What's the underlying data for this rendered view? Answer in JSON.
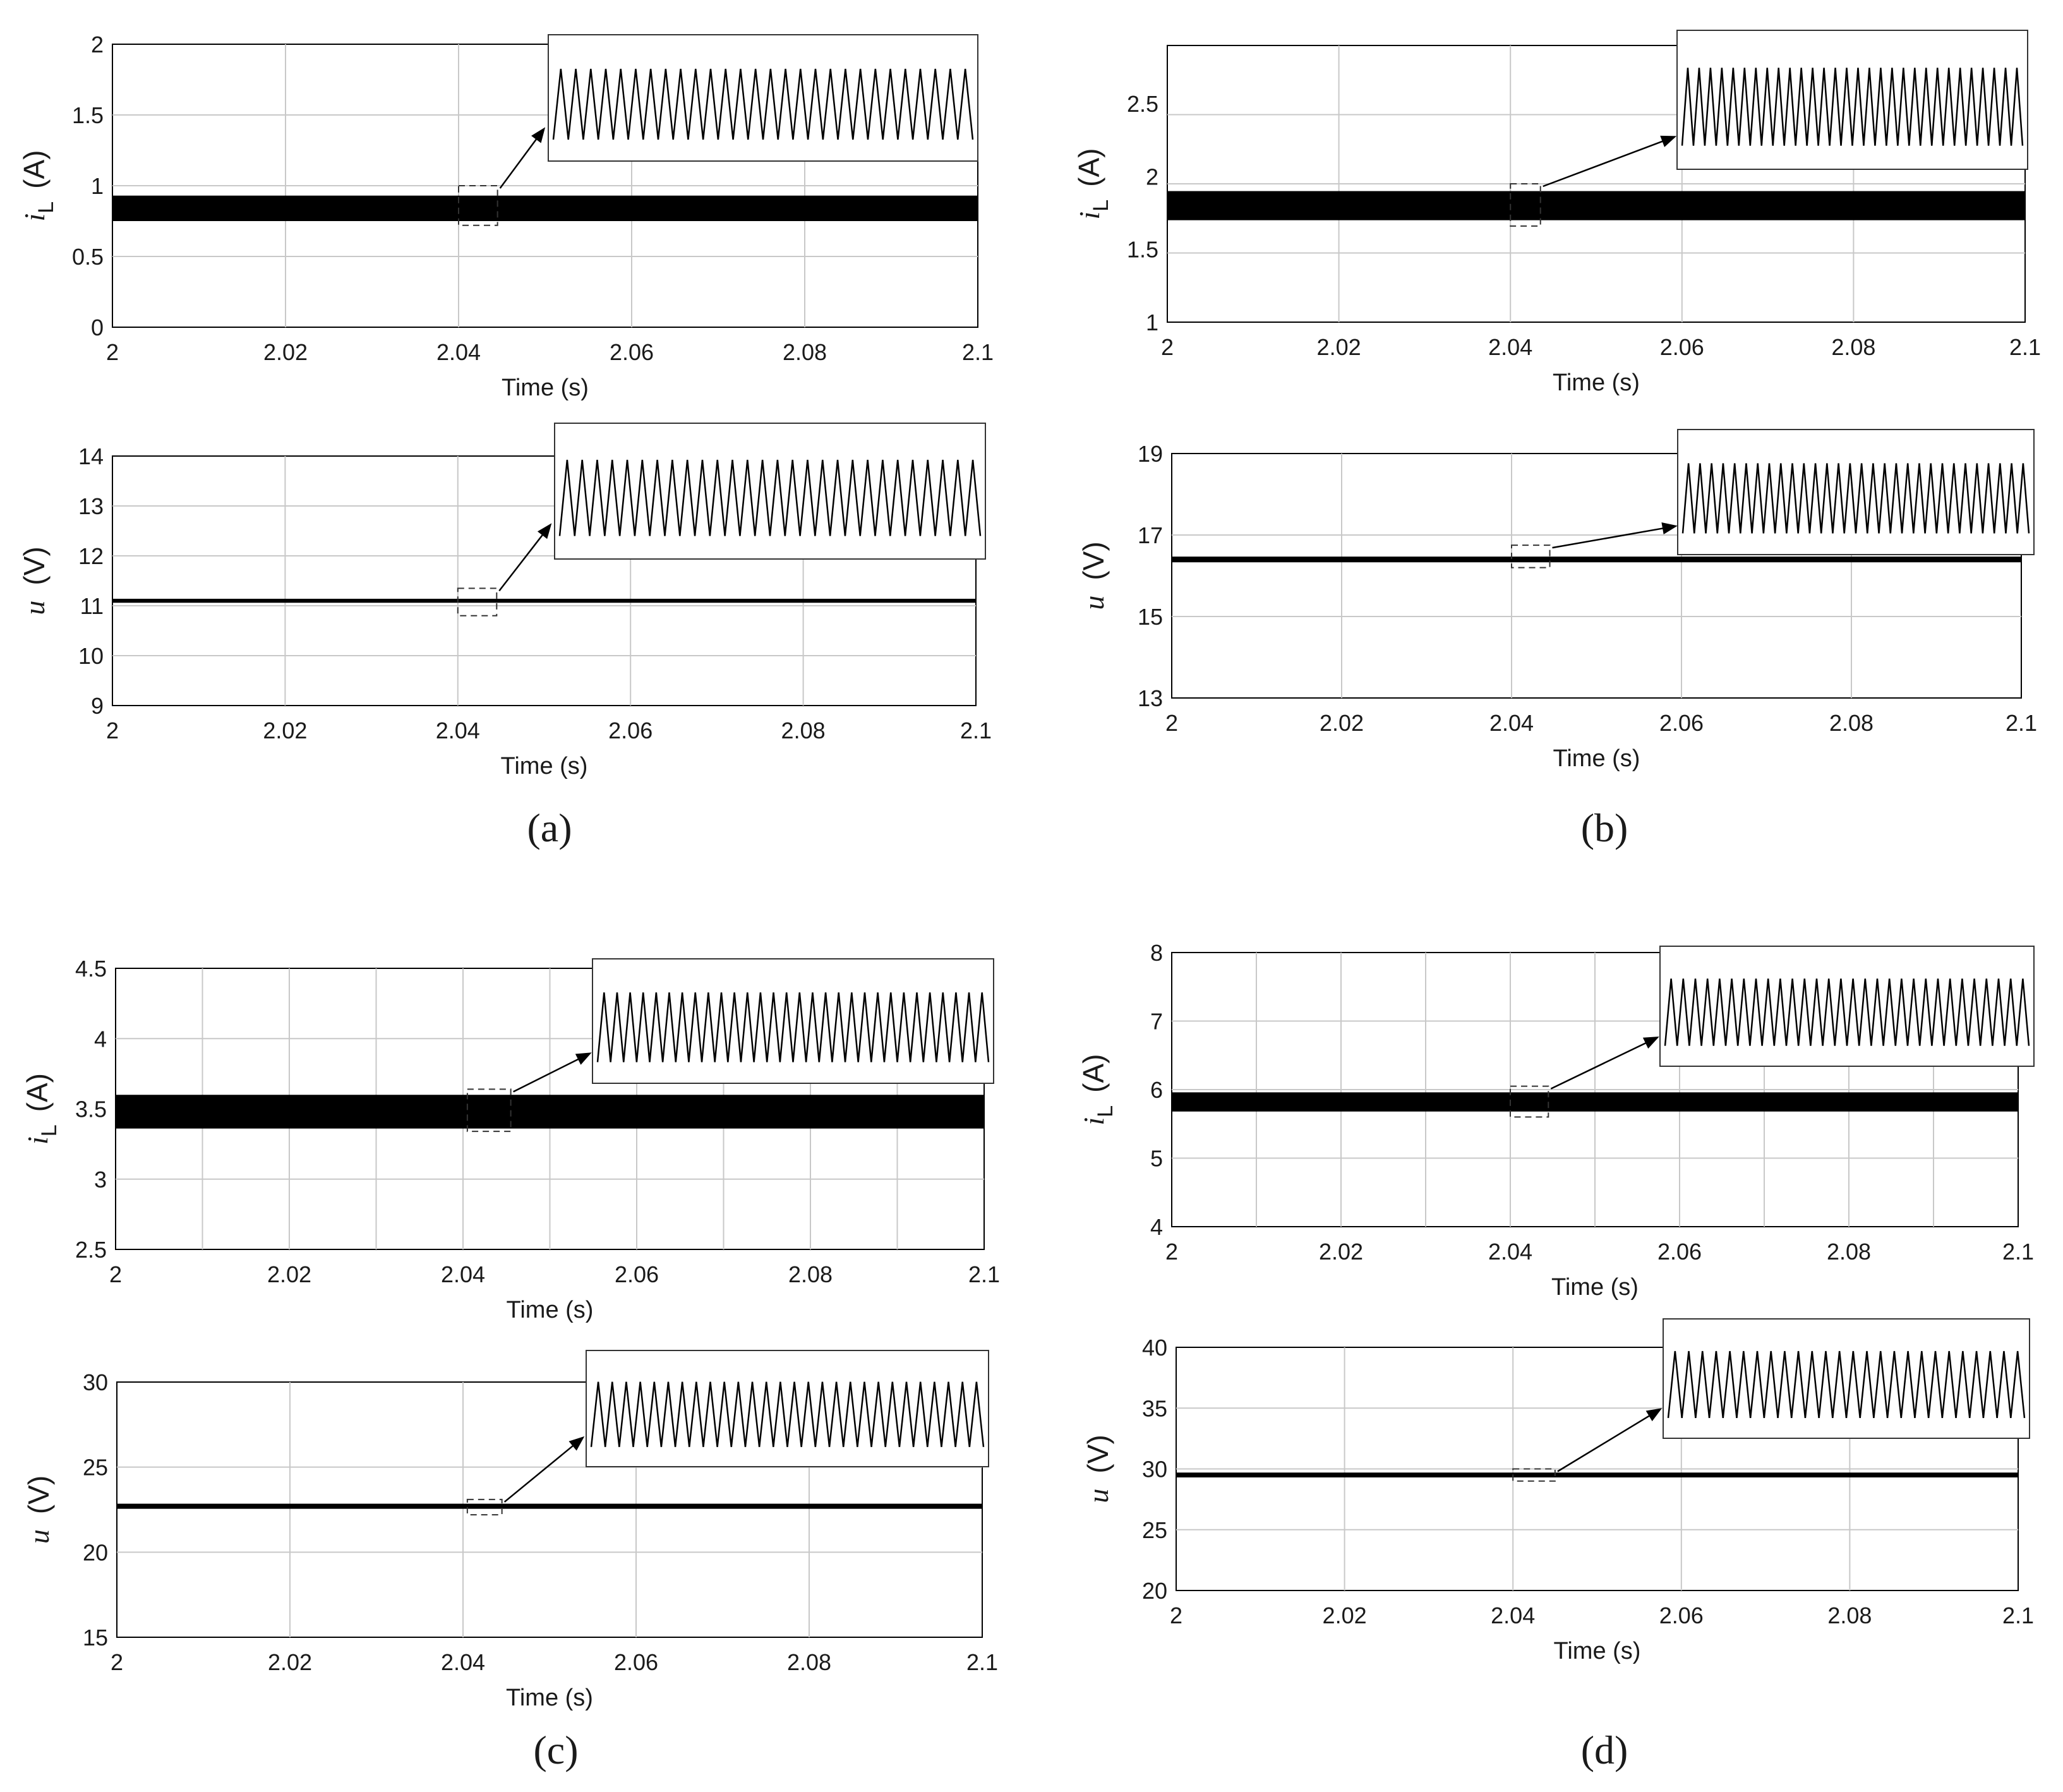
{
  "chart_data": [
    {
      "panel": "(a)",
      "type": "line",
      "ylabel": {
        "symbol": "i",
        "sub": "L",
        "unit": "(A)"
      },
      "xlabel": "Time (s)",
      "xlim": [
        2,
        2.1
      ],
      "ylim": [
        0,
        2
      ],
      "xticks": [
        "2",
        "2.02",
        "2.04",
        "2.06",
        "2.08",
        "2.1"
      ],
      "yticks": [
        "0",
        "0.5",
        "1",
        "1.5",
        "2"
      ],
      "xgrid": 5,
      "ygrid": 4,
      "series": [
        {
          "x": [
            2,
            2.1
          ],
          "mean": 0.84,
          "ripple": 0.09
        }
      ],
      "zoom": {
        "x": [
          2.04,
          2.0445
        ],
        "y": [
          0.72,
          1.0
        ],
        "cycles": 28
      },
      "grid": true
    },
    {
      "panel": "(a)",
      "type": "line",
      "ylabel": {
        "symbol": "u",
        "sub": "",
        "unit": "(V)"
      },
      "xlabel": "Time (s)",
      "xlim": [
        2,
        2.1
      ],
      "ylim": [
        9,
        14
      ],
      "xticks": [
        "2",
        "2.02",
        "2.04",
        "2.06",
        "2.08",
        "2.1"
      ],
      "yticks": [
        "9",
        "10",
        "11",
        "12",
        "13",
        "14"
      ],
      "xgrid": 5,
      "ygrid": 5,
      "series": [
        {
          "x": [
            2,
            2.1
          ],
          "mean": 11.1,
          "ripple": 0.04
        }
      ],
      "zoom": {
        "x": [
          2.04,
          2.0445
        ],
        "y": [
          10.8,
          11.35
        ],
        "cycles": 28
      },
      "grid": true
    },
    {
      "panel": "(b)",
      "type": "line",
      "ylabel": {
        "symbol": "i",
        "sub": "L",
        "unit": "(A)"
      },
      "xlabel": "Time (s)",
      "xlim": [
        2,
        2.1
      ],
      "ylim": [
        1,
        2.9
      ],
      "xticks": [
        "2",
        "2.02",
        "2.04",
        "2.06",
        "2.08",
        "2.1"
      ],
      "yticks": [
        "1",
        "1.5",
        "2",
        "2.5"
      ],
      "ytickvals": [
        1,
        1.5,
        2,
        2.5
      ],
      "xgrid": 5,
      "ygrid": 4,
      "series": [
        {
          "x": [
            2,
            2.1
          ],
          "mean": 1.8,
          "ripple": 0.1
        }
      ],
      "zoom": {
        "x": [
          2.04,
          2.0435
        ],
        "y": [
          1.66,
          1.95
        ],
        "cycles": 30
      },
      "grid": true
    },
    {
      "panel": "(b)",
      "type": "line",
      "ylabel": {
        "symbol": "u",
        "sub": "",
        "unit": "(V)"
      },
      "xlabel": "Time (s)",
      "xlim": [
        2,
        2.1
      ],
      "ylim": [
        13,
        19
      ],
      "xticks": [
        "2",
        "2.02",
        "2.04",
        "2.06",
        "2.08",
        "2.1"
      ],
      "yticks": [
        "13",
        "15",
        "17",
        "19"
      ],
      "xgrid": 5,
      "ygrid": 3,
      "series": [
        {
          "x": [
            2,
            2.1
          ],
          "mean": 16.4,
          "ripple": 0.07
        }
      ],
      "zoom": {
        "x": [
          2.04,
          2.0445
        ],
        "y": [
          16.2,
          16.75
        ],
        "cycles": 30
      },
      "grid": true
    },
    {
      "panel": "(c)",
      "type": "line",
      "ylabel": {
        "symbol": "i",
        "sub": "L",
        "unit": "(A)"
      },
      "xlabel": "Time (s)",
      "xlim": [
        2,
        2.1
      ],
      "ylim": [
        2.5,
        4.5
      ],
      "xticks": [
        "2",
        "2.02",
        "2.04",
        "2.06",
        "2.08",
        "2.1"
      ],
      "yticks": [
        "2.5",
        "3",
        "3.5",
        "4",
        "4.5"
      ],
      "xgrid": 10,
      "ygrid": 4,
      "series": [
        {
          "x": [
            2,
            2.1
          ],
          "mean": 3.48,
          "ripple": 0.12
        }
      ],
      "zoom": {
        "x": [
          2.0405,
          2.0455
        ],
        "y": [
          3.34,
          3.64
        ],
        "cycles": 30
      },
      "grid": true
    },
    {
      "panel": "(c)",
      "type": "line",
      "ylabel": {
        "symbol": "u",
        "sub": "",
        "unit": "(V)"
      },
      "xlabel": "Time (s)",
      "xlim": [
        2,
        2.1
      ],
      "ylim": [
        15,
        30
      ],
      "xticks": [
        "2",
        "2.02",
        "2.04",
        "2.06",
        "2.08",
        "2.1"
      ],
      "yticks": [
        "15",
        "20",
        "25",
        "30"
      ],
      "xgrid": 5,
      "ygrid": 3,
      "series": [
        {
          "x": [
            2,
            2.1
          ],
          "mean": 22.7,
          "ripple": 0.15
        }
      ],
      "zoom": {
        "x": [
          2.0405,
          2.0445
        ],
        "y": [
          22.2,
          23.1
        ],
        "cycles": 28
      },
      "grid": true
    },
    {
      "panel": "(d)",
      "type": "line",
      "ylabel": {
        "symbol": "i",
        "sub": "L",
        "unit": "(A)"
      },
      "xlabel": "Time (s)",
      "xlim": [
        2,
        2.1
      ],
      "ylim": [
        4,
        8
      ],
      "xticks": [
        "2",
        "2.02",
        "2.04",
        "2.06",
        "2.08",
        "2.1"
      ],
      "yticks": [
        "4",
        "5",
        "6",
        "7",
        "8"
      ],
      "xgrid": 10,
      "ygrid": 4,
      "series": [
        {
          "x": [
            2,
            2.1
          ],
          "mean": 5.82,
          "ripple": 0.14
        }
      ],
      "zoom": {
        "x": [
          2.04,
          2.0445
        ],
        "y": [
          5.6,
          6.05
        ],
        "cycles": 30
      },
      "grid": true
    },
    {
      "panel": "(d)",
      "type": "line",
      "ylabel": {
        "symbol": "u",
        "sub": "",
        "unit": "(V)"
      },
      "xlabel": "Time (s)",
      "xlim": [
        2,
        2.1
      ],
      "ylim": [
        20,
        40
      ],
      "xticks": [
        "2",
        "2.02",
        "2.04",
        "2.06",
        "2.08",
        "2.1"
      ],
      "yticks": [
        "20",
        "25",
        "30",
        "35",
        "40"
      ],
      "xgrid": 5,
      "ygrid": 4,
      "series": [
        {
          "x": [
            2,
            2.1
          ],
          "mean": 29.5,
          "ripple": 0.2
        }
      ],
      "zoom": {
        "x": [
          2.04,
          2.045
        ],
        "y": [
          29.0,
          30.0
        ],
        "cycles": 26
      },
      "grid": true
    }
  ],
  "captions": [
    "(a)",
    "(b)",
    "(c)",
    "(d)"
  ],
  "style": {
    "ink": "#000000",
    "grid_color": "#c8c8c8",
    "background": "#ffffff"
  }
}
